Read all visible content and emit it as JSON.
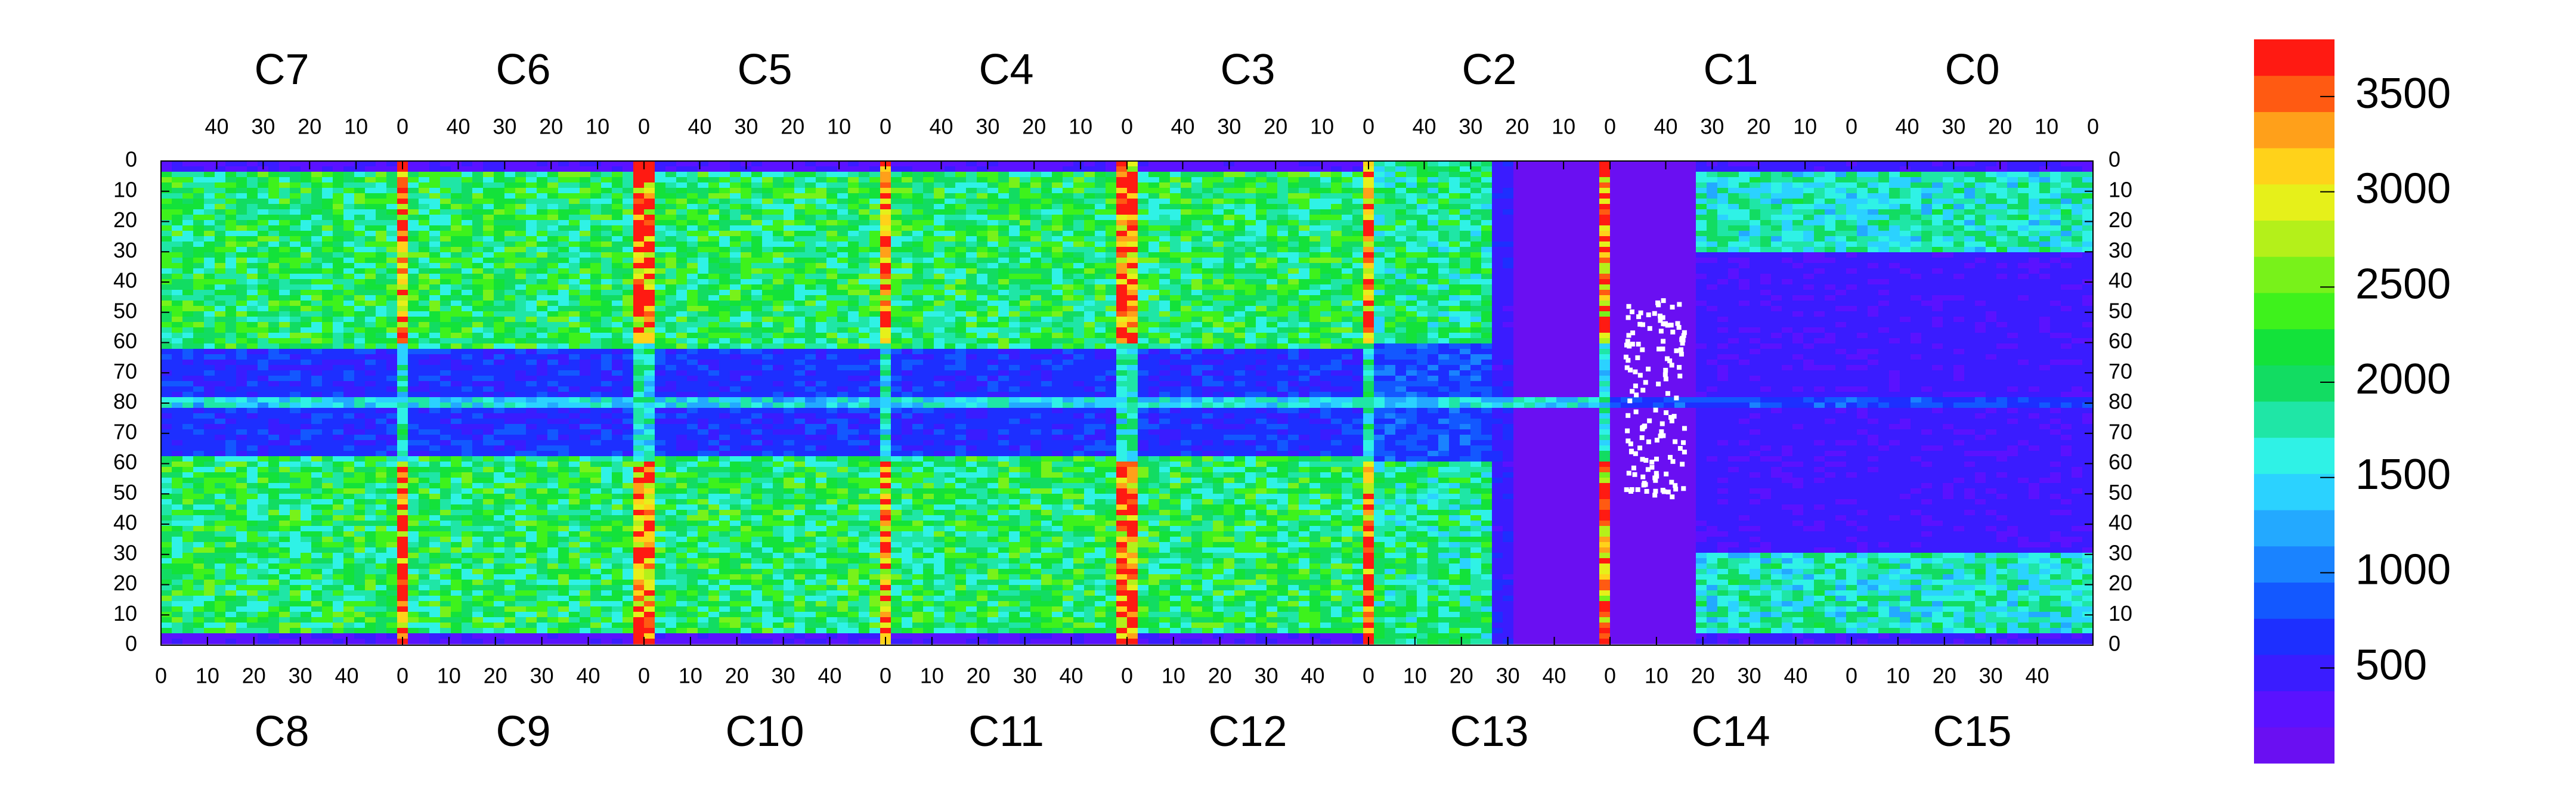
{
  "chart_data": {
    "type": "heatmap",
    "title": "",
    "xlabel": "",
    "ylabel": "",
    "top_chips": [
      "C7",
      "C6",
      "C5",
      "C4",
      "C3",
      "C2",
      "C1",
      "C0"
    ],
    "bottom_chips": [
      "C8",
      "C9",
      "C10",
      "C11",
      "C12",
      "C13",
      "C14",
      "C15"
    ],
    "top_x_ticks": [
      "40",
      "30",
      "20",
      "10",
      "0"
    ],
    "bottom_x_ticks": [
      "0",
      "10",
      "20",
      "30",
      "40"
    ],
    "y_ticks_top_half": [
      "0",
      "10",
      "20",
      "30",
      "40",
      "50",
      "60",
      "70",
      "80"
    ],
    "y_ticks_bottom_half": [
      "70",
      "60",
      "50",
      "40",
      "30",
      "20",
      "10",
      "0"
    ],
    "x_per_chip": [
      0,
      52
    ],
    "y_per_half": [
      0,
      80
    ],
    "colorbar": {
      "range": [
        0,
        3800
      ],
      "ticks": [
        "500",
        "1000",
        "1500",
        "2000",
        "2500",
        "3000",
        "3500"
      ],
      "levels": 20
    },
    "regions": [
      {
        "area": "top_chips_C7_to_C2",
        "rows": "0-62",
        "typical_value": 2000
      },
      {
        "area": "central_band_C7_to_C2",
        "rows": "62-80 and 80-62",
        "typical_value": 700
      },
      {
        "area": "bottom_chips_C8_to_C13",
        "rows": "62-0",
        "typical_value": 2000
      },
      {
        "area": "C2_C13_C1_C14_gap",
        "typical_value": 100
      },
      {
        "area": "C1_C0_C14_C15",
        "typical_value": 600
      },
      {
        "area": "chip_edge_columns",
        "typical_value": 3500
      },
      {
        "area": "row_80_line",
        "typical_value": 1500
      },
      {
        "area": "cold_pixels_in_gap",
        "typical_value": 0
      }
    ],
    "grid": false,
    "legend": "colorbar-right"
  }
}
